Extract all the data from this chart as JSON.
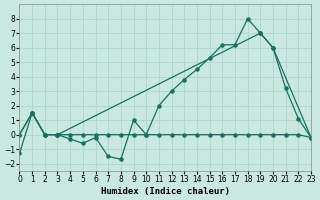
{
  "xlabel": "Humidex (Indice chaleur)",
  "ylabel": "",
  "background_color": "#c8e8e0",
  "grid_color": "#b0d8d0",
  "line_color": "#1a7060",
  "xlim": [
    0,
    23
  ],
  "ylim": [
    -2.5,
    9
  ],
  "yticks": [
    -2,
    -1,
    0,
    1,
    2,
    3,
    4,
    5,
    6,
    7,
    8
  ],
  "xticks": [
    0,
    1,
    2,
    3,
    4,
    5,
    6,
    7,
    8,
    9,
    10,
    11,
    12,
    13,
    14,
    15,
    16,
    17,
    18,
    19,
    20,
    21,
    22,
    23
  ],
  "line1": {
    "x": [
      0,
      1,
      2,
      3,
      4,
      5,
      6,
      7,
      8,
      9,
      10,
      11,
      12,
      13,
      14,
      15,
      16,
      17,
      18,
      19,
      20,
      21,
      22,
      23
    ],
    "y": [
      -1.3,
      1.5,
      0.0,
      0.0,
      -0.3,
      -0.6,
      -0.2,
      -1.5,
      -1.7,
      1.0,
      0.0,
      2.0,
      3.0,
      3.8,
      4.5,
      5.3,
      6.2,
      6.2,
      8.0,
      7.0,
      6.0,
      3.2,
      1.1,
      -0.2
    ]
  },
  "line2": {
    "x": [
      0,
      1,
      2,
      3,
      4,
      5,
      6,
      7,
      8,
      9,
      10,
      11,
      12,
      13,
      14,
      15,
      16,
      17,
      18,
      19,
      20,
      21,
      22,
      23
    ],
    "y": [
      0.0,
      1.5,
      0.0,
      0.0,
      0.0,
      0.0,
      0.0,
      0.0,
      0.0,
      0.0,
      0.0,
      0.0,
      0.0,
      0.0,
      0.0,
      0.0,
      0.0,
      0.0,
      0.0,
      0.0,
      0.0,
      0.0,
      0.0,
      -0.2
    ]
  },
  "line3": {
    "x": [
      0,
      1,
      2,
      3,
      19,
      20,
      23
    ],
    "y": [
      0.0,
      1.5,
      0.0,
      0.0,
      7.0,
      6.0,
      -0.2
    ]
  }
}
